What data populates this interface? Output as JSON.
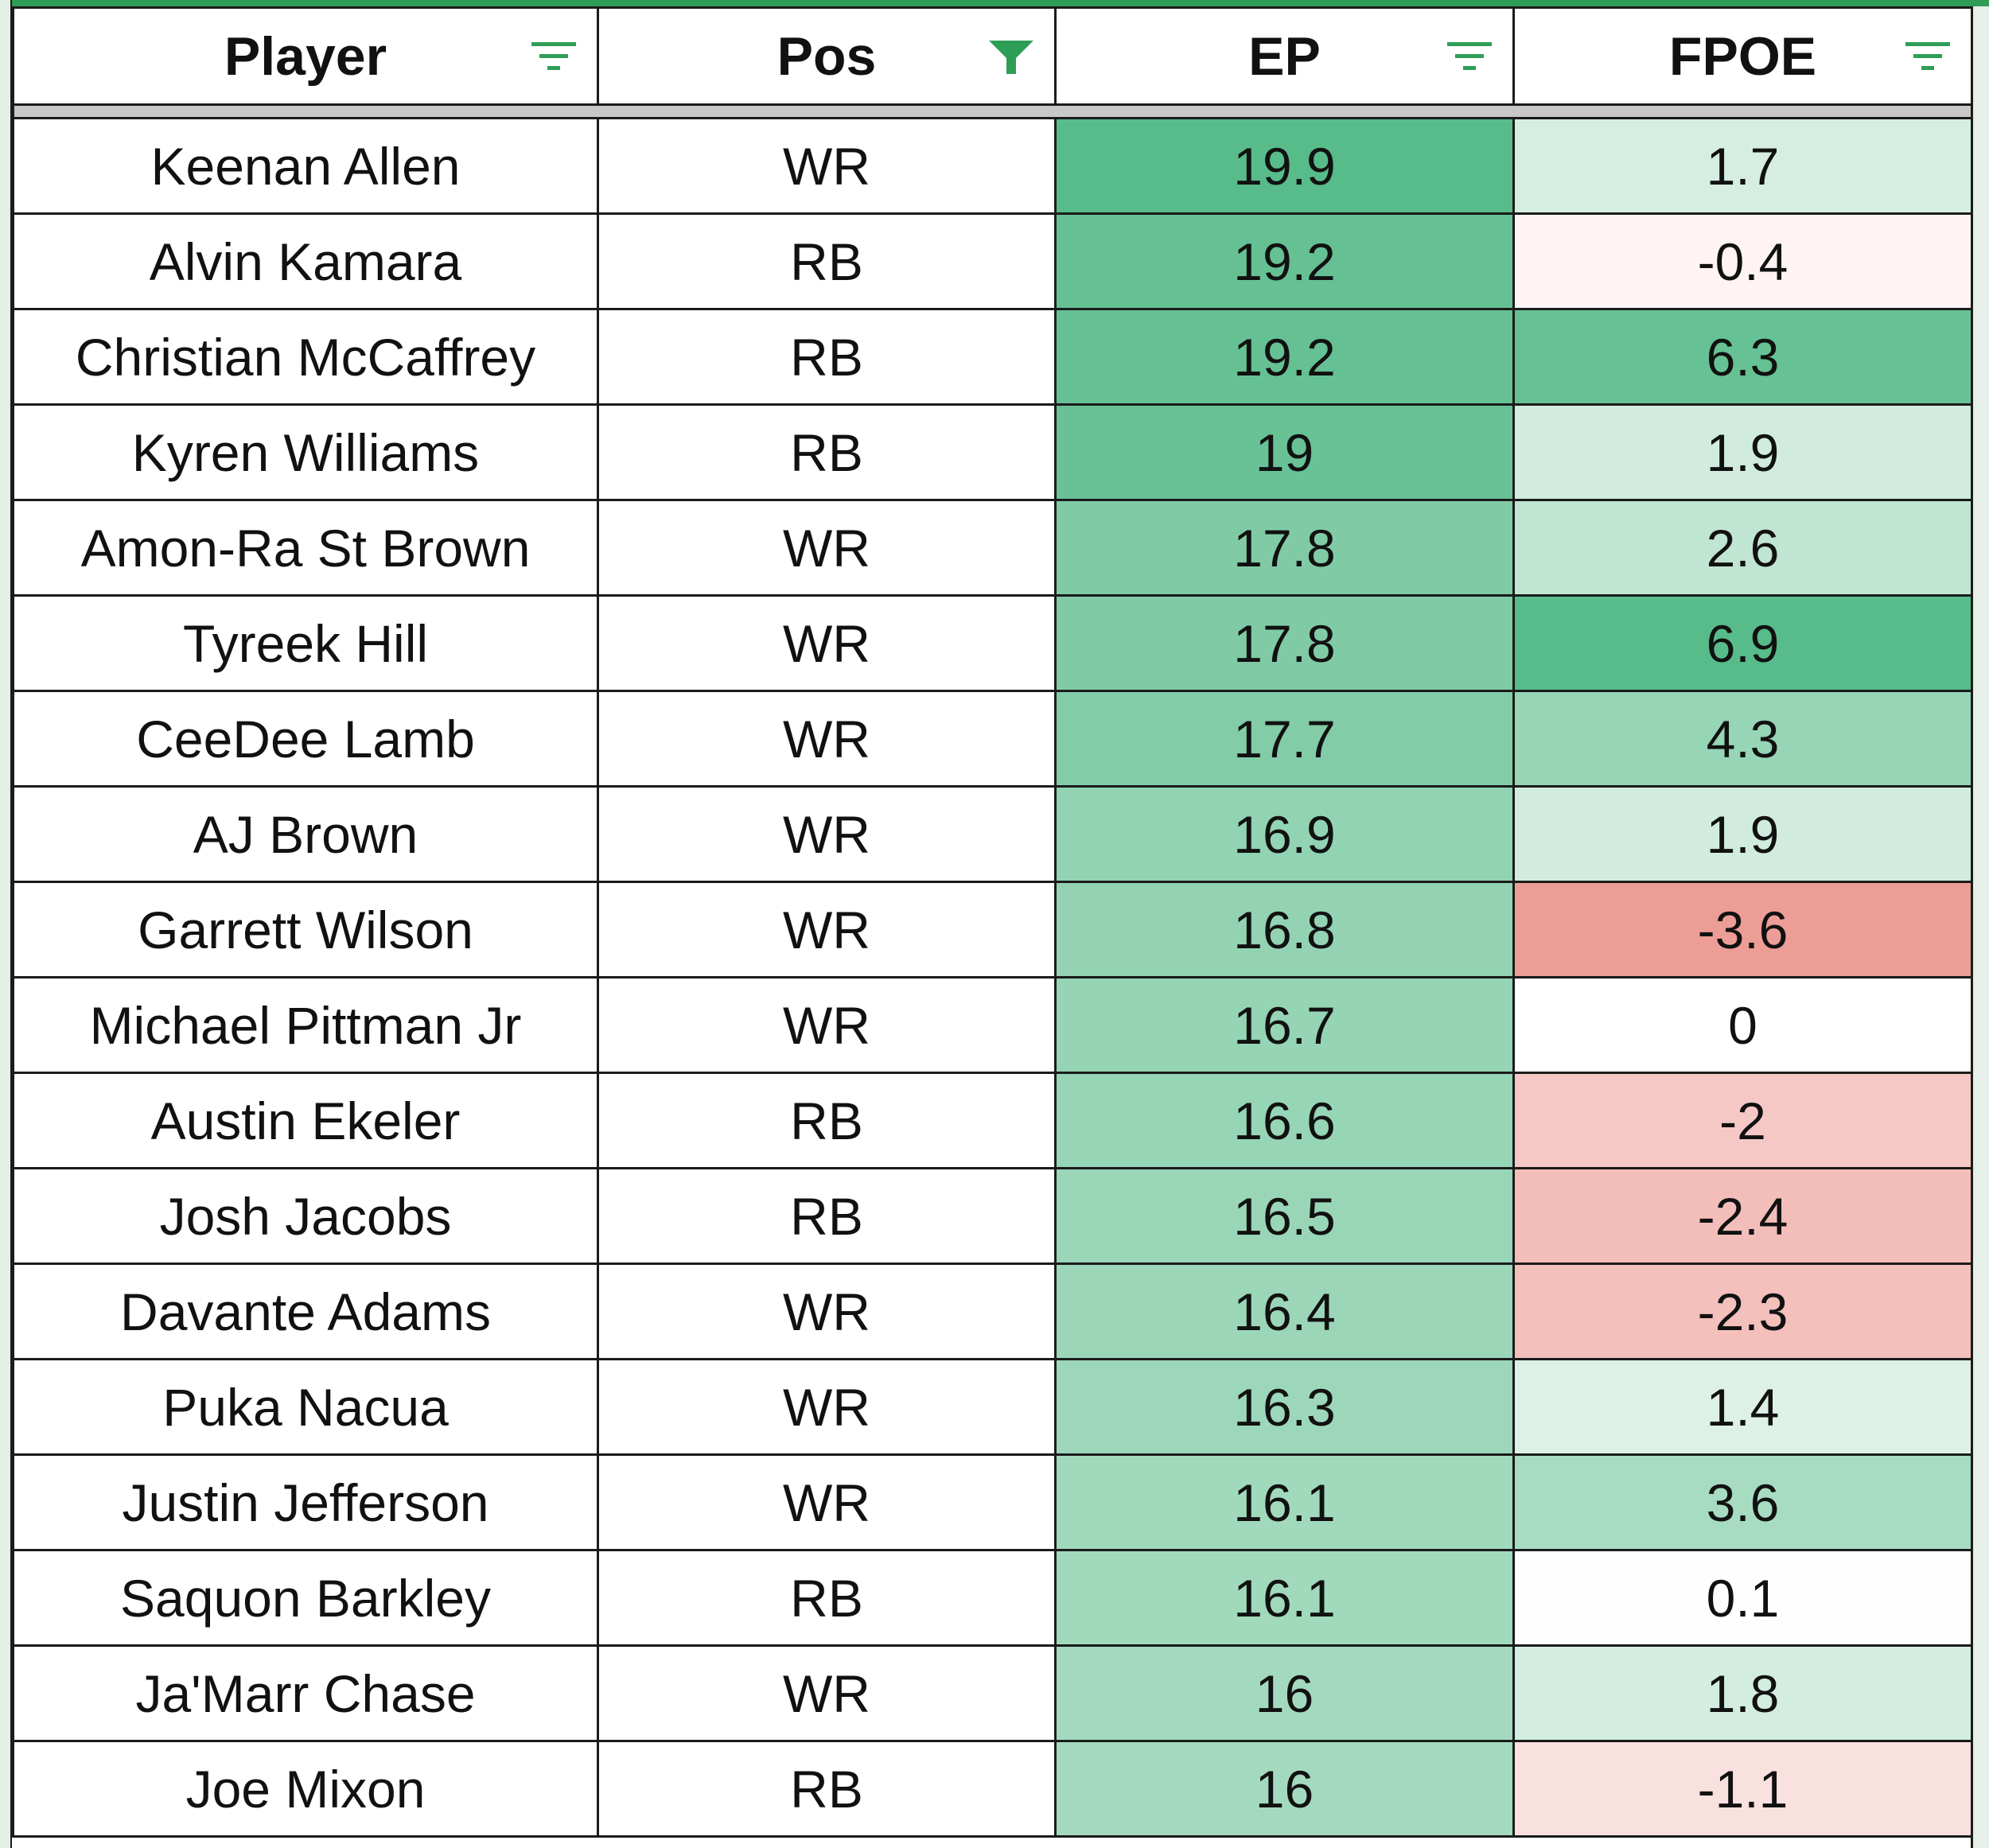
{
  "header": {
    "columns": [
      {
        "label": "Player",
        "filter_active": false
      },
      {
        "label": "Pos",
        "filter_active": true
      },
      {
        "label": "EP",
        "filter_active": false
      },
      {
        "label": "FPOE",
        "filter_active": false
      }
    ]
  },
  "colors": {
    "filter_icon": "#2e9e56",
    "header_line": "#2e9e56",
    "grid_line": "#1b1b1b",
    "freeze_bar": "#c8c8c8",
    "scale_green": "#57bb8a",
    "scale_white": "#ffffff",
    "scale_red": "#e67c73"
  },
  "rows": [
    {
      "player": "Keenan Allen",
      "pos": "WR",
      "ep": "19.9",
      "fpoe": "1.7"
    },
    {
      "player": "Alvin Kamara",
      "pos": "RB",
      "ep": "19.2",
      "fpoe": "-0.4"
    },
    {
      "player": "Christian McCaffrey",
      "pos": "RB",
      "ep": "19.2",
      "fpoe": "6.3"
    },
    {
      "player": "Kyren Williams",
      "pos": "RB",
      "ep": "19",
      "fpoe": "1.9"
    },
    {
      "player": "Amon-Ra St Brown",
      "pos": "WR",
      "ep": "17.8",
      "fpoe": "2.6"
    },
    {
      "player": "Tyreek Hill",
      "pos": "WR",
      "ep": "17.8",
      "fpoe": "6.9"
    },
    {
      "player": "CeeDee Lamb",
      "pos": "WR",
      "ep": "17.7",
      "fpoe": "4.3"
    },
    {
      "player": "AJ Brown",
      "pos": "WR",
      "ep": "16.9",
      "fpoe": "1.9"
    },
    {
      "player": "Garrett Wilson",
      "pos": "WR",
      "ep": "16.8",
      "fpoe": "-3.6"
    },
    {
      "player": "Michael Pittman Jr",
      "pos": "WR",
      "ep": "16.7",
      "fpoe": "0"
    },
    {
      "player": "Austin Ekeler",
      "pos": "RB",
      "ep": "16.6",
      "fpoe": "-2"
    },
    {
      "player": "Josh Jacobs",
      "pos": "RB",
      "ep": "16.5",
      "fpoe": "-2.4"
    },
    {
      "player": "Davante Adams",
      "pos": "WR",
      "ep": "16.4",
      "fpoe": "-2.3"
    },
    {
      "player": "Puka Nacua",
      "pos": "WR",
      "ep": "16.3",
      "fpoe": "1.4"
    },
    {
      "player": "Justin Jefferson",
      "pos": "WR",
      "ep": "16.1",
      "fpoe": "3.6"
    },
    {
      "player": "Saquon Barkley",
      "pos": "RB",
      "ep": "16.1",
      "fpoe": "0.1"
    },
    {
      "player": "Ja'Marr Chase",
      "pos": "WR",
      "ep": "16",
      "fpoe": "1.8"
    },
    {
      "player": "Joe Mixon",
      "pos": "RB",
      "ep": "16",
      "fpoe": "-1.1"
    }
  ]
}
